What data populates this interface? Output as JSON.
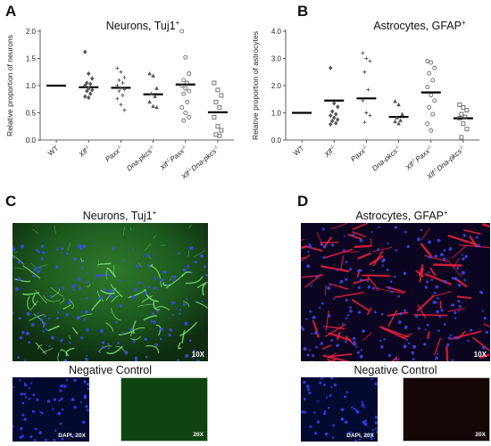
{
  "panels": {
    "A": {
      "letter": "A",
      "title": "Neurons, Tuj1",
      "title_sup": "+",
      "ylabel": "Relative proportion of neurons"
    },
    "B": {
      "letter": "B",
      "title": "Astrocytes, GFAP",
      "title_sup": "+",
      "ylabel": "Relative proportion of astrocytes"
    },
    "C": {
      "letter": "C",
      "caption": "Neurons, Tuj1",
      "caption_sup": "+",
      "main_mag": "10X",
      "neg_title": "Negative Control",
      "neg_left_label": "DAPI, 20X",
      "neg_right_label": "20X"
    },
    "D": {
      "letter": "D",
      "caption": "Astrocytes, GFAP",
      "caption_sup": "+",
      "main_mag": "10X",
      "neg_title": "Negative Control",
      "neg_left_label": "DAPI, 20X",
      "neg_right_label": "20X"
    }
  },
  "chart_data": [
    {
      "type": "scatter",
      "title": "Neurons, Tuj1+",
      "xlabel": "",
      "ylabel": "Relative proportion of neurons",
      "ylim": [
        0,
        2.0
      ],
      "yticks": [
        "0.0",
        "0.5",
        "1.0",
        "1.5",
        "2.0"
      ],
      "categories": [
        {
          "base": "WT",
          "sup": ""
        },
        {
          "base": "Xlf",
          "sup": "-/-"
        },
        {
          "base": "Paxx",
          "sup": "-/-"
        },
        {
          "base": "Dna-pkcs",
          "sup": "-/-"
        },
        {
          "base": "Xlf",
          "sup": "-/-",
          "base2": "Paxx",
          "sup2": "-/-"
        },
        {
          "base": "Xlf",
          "sup": "-/-",
          "base2": "Dna-pkcs",
          "sup2": "-/-"
        }
      ],
      "means": [
        1.0,
        0.97,
        0.96,
        0.84,
        1.02,
        0.51
      ],
      "markers": [
        "none",
        "diamond",
        "plus",
        "triangle",
        "circle",
        "square"
      ],
      "points": [
        [],
        [
          1.62,
          1.22,
          1.13,
          1.05,
          1.03,
          1.0,
          0.95,
          0.92,
          0.9,
          0.85,
          0.8,
          0.78
        ],
        [
          1.32,
          1.25,
          1.15,
          1.1,
          1.05,
          1.0,
          0.95,
          0.93,
          0.9,
          0.82,
          0.76,
          0.65,
          0.55
        ],
        [
          1.22,
          1.18,
          0.95,
          0.85,
          0.8,
          0.7,
          0.62,
          0.6
        ],
        [
          2.0,
          1.52,
          1.22,
          1.1,
          1.05,
          1.0,
          0.95,
          0.9,
          0.85,
          0.7,
          0.6,
          0.5,
          0.42,
          0.36
        ],
        [
          1.05,
          0.92,
          0.82,
          0.7,
          0.6,
          0.42,
          0.25,
          0.18,
          0.1,
          0.08
        ]
      ]
    },
    {
      "type": "scatter",
      "title": "Astrocytes, GFAP+",
      "xlabel": "",
      "ylabel": "Relative proportion of astrocytes",
      "ylim": [
        0,
        4.0
      ],
      "yticks": [
        "0.0",
        "1.0",
        "2.0",
        "3.0",
        "4.0"
      ],
      "categories": [
        {
          "base": "WT",
          "sup": ""
        },
        {
          "base": "Xlf",
          "sup": "-/-"
        },
        {
          "base": "Paxx",
          "sup": "-/-"
        },
        {
          "base": "Dna-pkcs",
          "sup": "-/-"
        },
        {
          "base": "Xlf",
          "sup": "-/-",
          "base2": "Paxx",
          "sup2": "-/-"
        },
        {
          "base": "Xlf",
          "sup": "-/-",
          "base2": "Dna-pkcs",
          "sup2": "-/-"
        }
      ],
      "means": [
        1.0,
        1.45,
        1.53,
        0.85,
        1.75,
        0.8
      ],
      "markers": [
        "none",
        "diamond",
        "plus",
        "triangle",
        "circle",
        "square"
      ],
      "points": [
        [],
        [
          2.65,
          1.35,
          1.22,
          1.05,
          0.95,
          0.9,
          0.82,
          0.75,
          0.7,
          0.62,
          0.58
        ],
        [
          3.2,
          3.0,
          2.9,
          2.5,
          1.85,
          1.45,
          1.0,
          0.9,
          0.65
        ],
        [
          1.42,
          1.3,
          0.95,
          0.82,
          0.72,
          0.68,
          0.6
        ],
        [
          2.9,
          2.85,
          2.65,
          2.45,
          2.2,
          1.95,
          1.65,
          1.45,
          1.2,
          0.95,
          0.6,
          0.35
        ],
        [
          1.3,
          1.2,
          1.1,
          0.95,
          0.85,
          0.8,
          0.6,
          0.4,
          0.1
        ]
      ]
    }
  ]
}
